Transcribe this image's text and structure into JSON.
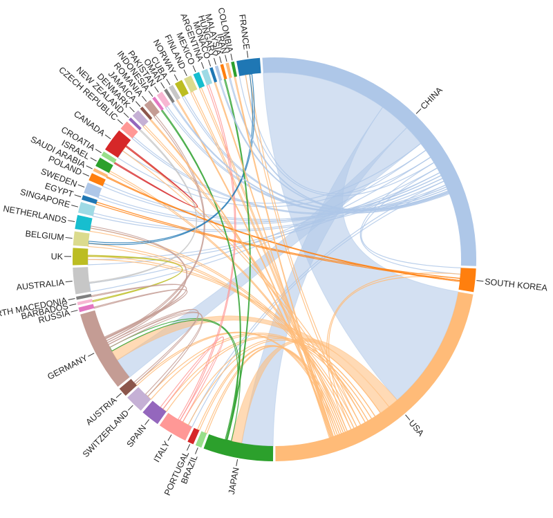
{
  "chart_data": {
    "type": "chord",
    "title": "",
    "nodes": [
      {
        "name": "CHINA",
        "color": "#aec7e8",
        "arc_share": 0.213
      },
      {
        "name": "SOUTH KOREA",
        "color": "#ff7f0e",
        "arc_share": 0.015
      },
      {
        "name": "USA",
        "color": "#ffbb78",
        "arc_share": 0.178
      },
      {
        "name": "JAPAN",
        "color": "#2ca02c",
        "arc_share": 0.045
      },
      {
        "name": "BRAZIL",
        "color": "#98df8a",
        "arc_share": 0.004
      },
      {
        "name": "PORTUGAL",
        "color": "#d62728",
        "arc_share": 0.004
      },
      {
        "name": "ITALY",
        "color": "#ff9896",
        "arc_share": 0.019
      },
      {
        "name": "SPAIN",
        "color": "#9467bd",
        "arc_share": 0.012
      },
      {
        "name": "SWITZERLAND",
        "color": "#c5b0d5",
        "arc_share": 0.012
      },
      {
        "name": "AUSTRIA",
        "color": "#8c564b",
        "arc_share": 0.006
      },
      {
        "name": "GERMANY",
        "color": "#c49c94",
        "arc_share": 0.052
      },
      {
        "name": "RUSSIA",
        "color": "#e377c2",
        "arc_share": 0.003
      },
      {
        "name": "BARBADOS",
        "color": "#f7b6d2",
        "arc_share": 0.002
      },
      {
        "name": "NORTH MACEDONIA",
        "color": "#7f7f7f",
        "arc_share": 0.002
      },
      {
        "name": "AUSTRALIA",
        "color": "#c7c7c7",
        "arc_share": 0.017
      },
      {
        "name": "UK",
        "color": "#bcbd22",
        "arc_share": 0.011
      },
      {
        "name": "BELGIUM",
        "color": "#dbdb8d",
        "arc_share": 0.009
      },
      {
        "name": "NETHERLANDS",
        "color": "#17becf",
        "arc_share": 0.009
      },
      {
        "name": "SINGAPORE",
        "color": "#9edae5",
        "arc_share": 0.007
      },
      {
        "name": "EGYPT",
        "color": "#1f77b4",
        "arc_share": 0.003
      },
      {
        "name": "SWEDEN",
        "color": "#aec7e8",
        "arc_share": 0.007
      },
      {
        "name": "POLAND",
        "color": "#ff7f0e",
        "arc_share": 0.005
      },
      {
        "name": "SAUDI ARABIA",
        "color": "#ffbb78",
        "arc_share": 0.002
      },
      {
        "name": "ISRAEL",
        "color": "#2ca02c",
        "arc_share": 0.006
      },
      {
        "name": "CROATIA",
        "color": "#98df8a",
        "arc_share": 0.003
      },
      {
        "name": "CANADA",
        "color": "#d62728",
        "arc_share": 0.015
      },
      {
        "name": "CZECH REPUBLIC",
        "color": "#ff9896",
        "arc_share": 0.006
      },
      {
        "name": "NEW ZEALAND",
        "color": "#9467bd",
        "arc_share": 0.002
      },
      {
        "name": "DENMARK",
        "color": "#c5b0d5",
        "arc_share": 0.005
      },
      {
        "name": "JAMAICA",
        "color": "#8c564b",
        "arc_share": 0.002
      },
      {
        "name": "ROMANIA",
        "color": "#c49c94",
        "arc_share": 0.005
      },
      {
        "name": "INDONESIA",
        "color": "#e377c2",
        "arc_share": 0.002
      },
      {
        "name": "PAKISTAN",
        "color": "#f7b6d2",
        "arc_share": 0.004
      },
      {
        "name": "OMAN",
        "color": "#7f7f7f",
        "arc_share": 0.002
      },
      {
        "name": "CUBA",
        "color": "#c7c7c7",
        "arc_share": 0.003
      },
      {
        "name": "NORWAY",
        "color": "#bcbd22",
        "arc_share": 0.005
      },
      {
        "name": "FINLAND",
        "color": "#dbdb8d",
        "arc_share": 0.005
      },
      {
        "name": "MEXICO",
        "color": "#17becf",
        "arc_share": 0.004
      },
      {
        "name": "ARGENTINA",
        "color": "#9edae5",
        "arc_share": 0.004
      },
      {
        "name": "MONACO",
        "color": "#1f77b4",
        "arc_share": 0.002
      },
      {
        "name": "HUNGARY",
        "color": "#aec7e8",
        "arc_share": 0.002
      },
      {
        "name": "MALAYSIA",
        "color": "#ff7f0e",
        "arc_share": 0.002
      },
      {
        "name": "IRAN",
        "color": "#ffbb78",
        "arc_share": 0.002
      },
      {
        "name": "COLOMBIA",
        "color": "#2ca02c",
        "arc_share": 0.002
      },
      {
        "name": "FRANCE",
        "color": "#1f77b4",
        "arc_share": 0.015
      }
    ],
    "links": [
      {
        "source": "CHINA",
        "target": "USA",
        "weight": 0.12
      },
      {
        "source": "CHINA",
        "target": "JAPAN",
        "weight": 0.03
      },
      {
        "source": "CHINA",
        "target": "GERMANY",
        "weight": 0.02
      },
      {
        "source": "CHINA",
        "target": "CANADA",
        "weight": 0.008
      },
      {
        "source": "CHINA",
        "target": "AUSTRALIA",
        "weight": 0.008
      },
      {
        "source": "CHINA",
        "target": "FRANCE",
        "weight": 0.006
      },
      {
        "source": "CHINA",
        "target": "SOUTH KOREA",
        "weight": 0.006
      },
      {
        "source": "CHINA",
        "target": "UK",
        "weight": 0.005
      },
      {
        "source": "CHINA",
        "target": "SWEDEN",
        "weight": 0.003
      },
      {
        "source": "CHINA",
        "target": "POLAND",
        "weight": 0.003
      },
      {
        "source": "CHINA",
        "target": "SINGAPORE",
        "weight": 0.003
      },
      {
        "source": "CHINA",
        "target": "ITALY",
        "weight": 0.004
      },
      {
        "source": "CHINA",
        "target": "CZECH REPUBLIC",
        "weight": 0.002
      },
      {
        "source": "CHINA",
        "target": "NORWAY",
        "weight": 0.002
      },
      {
        "source": "CHINA",
        "target": "PAKISTAN",
        "weight": 0.002
      },
      {
        "source": "USA",
        "target": "JAPAN",
        "weight": 0.01
      },
      {
        "source": "USA",
        "target": "GERMANY",
        "weight": 0.01
      },
      {
        "source": "USA",
        "target": "ITALY",
        "weight": 0.006
      },
      {
        "source": "USA",
        "target": "SPAIN",
        "weight": 0.004
      },
      {
        "source": "USA",
        "target": "SWITZERLAND",
        "weight": 0.004
      },
      {
        "source": "USA",
        "target": "UK",
        "weight": 0.003
      },
      {
        "source": "USA",
        "target": "CANADA",
        "weight": 0.005
      },
      {
        "source": "USA",
        "target": "FRANCE",
        "weight": 0.004
      },
      {
        "source": "USA",
        "target": "NETHERLANDS",
        "weight": 0.003
      },
      {
        "source": "USA",
        "target": "BELGIUM",
        "weight": 0.003
      },
      {
        "source": "USA",
        "target": "SOUTH KOREA",
        "weight": 0.004
      },
      {
        "source": "USA",
        "target": "ISRAEL",
        "weight": 0.002
      },
      {
        "source": "USA",
        "target": "DENMARK",
        "weight": 0.002
      },
      {
        "source": "USA",
        "target": "BRAZIL",
        "weight": 0.002
      },
      {
        "source": "USA",
        "target": "PORTUGAL",
        "weight": 0.002
      },
      {
        "source": "USA",
        "target": "AUSTRIA",
        "weight": 0.002
      },
      {
        "source": "USA",
        "target": "MEXICO",
        "weight": 0.002
      },
      {
        "source": "USA",
        "target": "FINLAND",
        "weight": 0.002
      },
      {
        "source": "JAPAN",
        "target": "GERMANY",
        "weight": 0.004
      },
      {
        "source": "GERMANY",
        "target": "SWITZERLAND",
        "weight": 0.003
      },
      {
        "source": "GERMANY",
        "target": "AUSTRIA",
        "weight": 0.002
      },
      {
        "source": "GERMANY",
        "target": "NETHERLANDS",
        "weight": 0.002
      },
      {
        "source": "GERMANY",
        "target": "ROMANIA",
        "weight": 0.002
      },
      {
        "source": "ITALY",
        "target": "SPAIN",
        "weight": 0.003
      },
      {
        "source": "ITALY",
        "target": "ARGENTINA",
        "weight": 0.002
      },
      {
        "source": "SOUTH KOREA",
        "target": "EGYPT",
        "weight": 0.002
      },
      {
        "source": "SOUTH KOREA",
        "target": "SAUDI ARABIA",
        "weight": 0.001
      },
      {
        "source": "FRANCE",
        "target": "BELGIUM",
        "weight": 0.002
      },
      {
        "source": "AUSTRALIA",
        "target": "NEW ZEALAND",
        "weight": 0.001
      },
      {
        "source": "CANADA",
        "target": "CROATIA",
        "weight": 0.001
      },
      {
        "source": "JAPAN",
        "target": "MALAYSIA",
        "weight": 0.001
      },
      {
        "source": "JAPAN",
        "target": "INDONESIA",
        "weight": 0.001
      },
      {
        "source": "CHINA",
        "target": "HUNGARY",
        "weight": 0.001
      },
      {
        "source": "CHINA",
        "target": "IRAN",
        "weight": 0.001
      },
      {
        "source": "USA",
        "target": "COLOMBIA",
        "weight": 0.001
      },
      {
        "source": "USA",
        "target": "MONACO",
        "weight": 0.001
      },
      {
        "source": "USA",
        "target": "JAMAICA",
        "weight": 0.001
      },
      {
        "source": "USA",
        "target": "CUBA",
        "weight": 0.001
      },
      {
        "source": "CHINA",
        "target": "OMAN",
        "weight": 0.001
      },
      {
        "source": "GERMANY",
        "target": "RUSSIA",
        "weight": 0.001
      },
      {
        "source": "UK",
        "target": "BARBADOS",
        "weight": 0.001
      },
      {
        "source": "GERMANY",
        "target": "NORTH MACEDONIA",
        "weight": 0.001
      }
    ]
  }
}
